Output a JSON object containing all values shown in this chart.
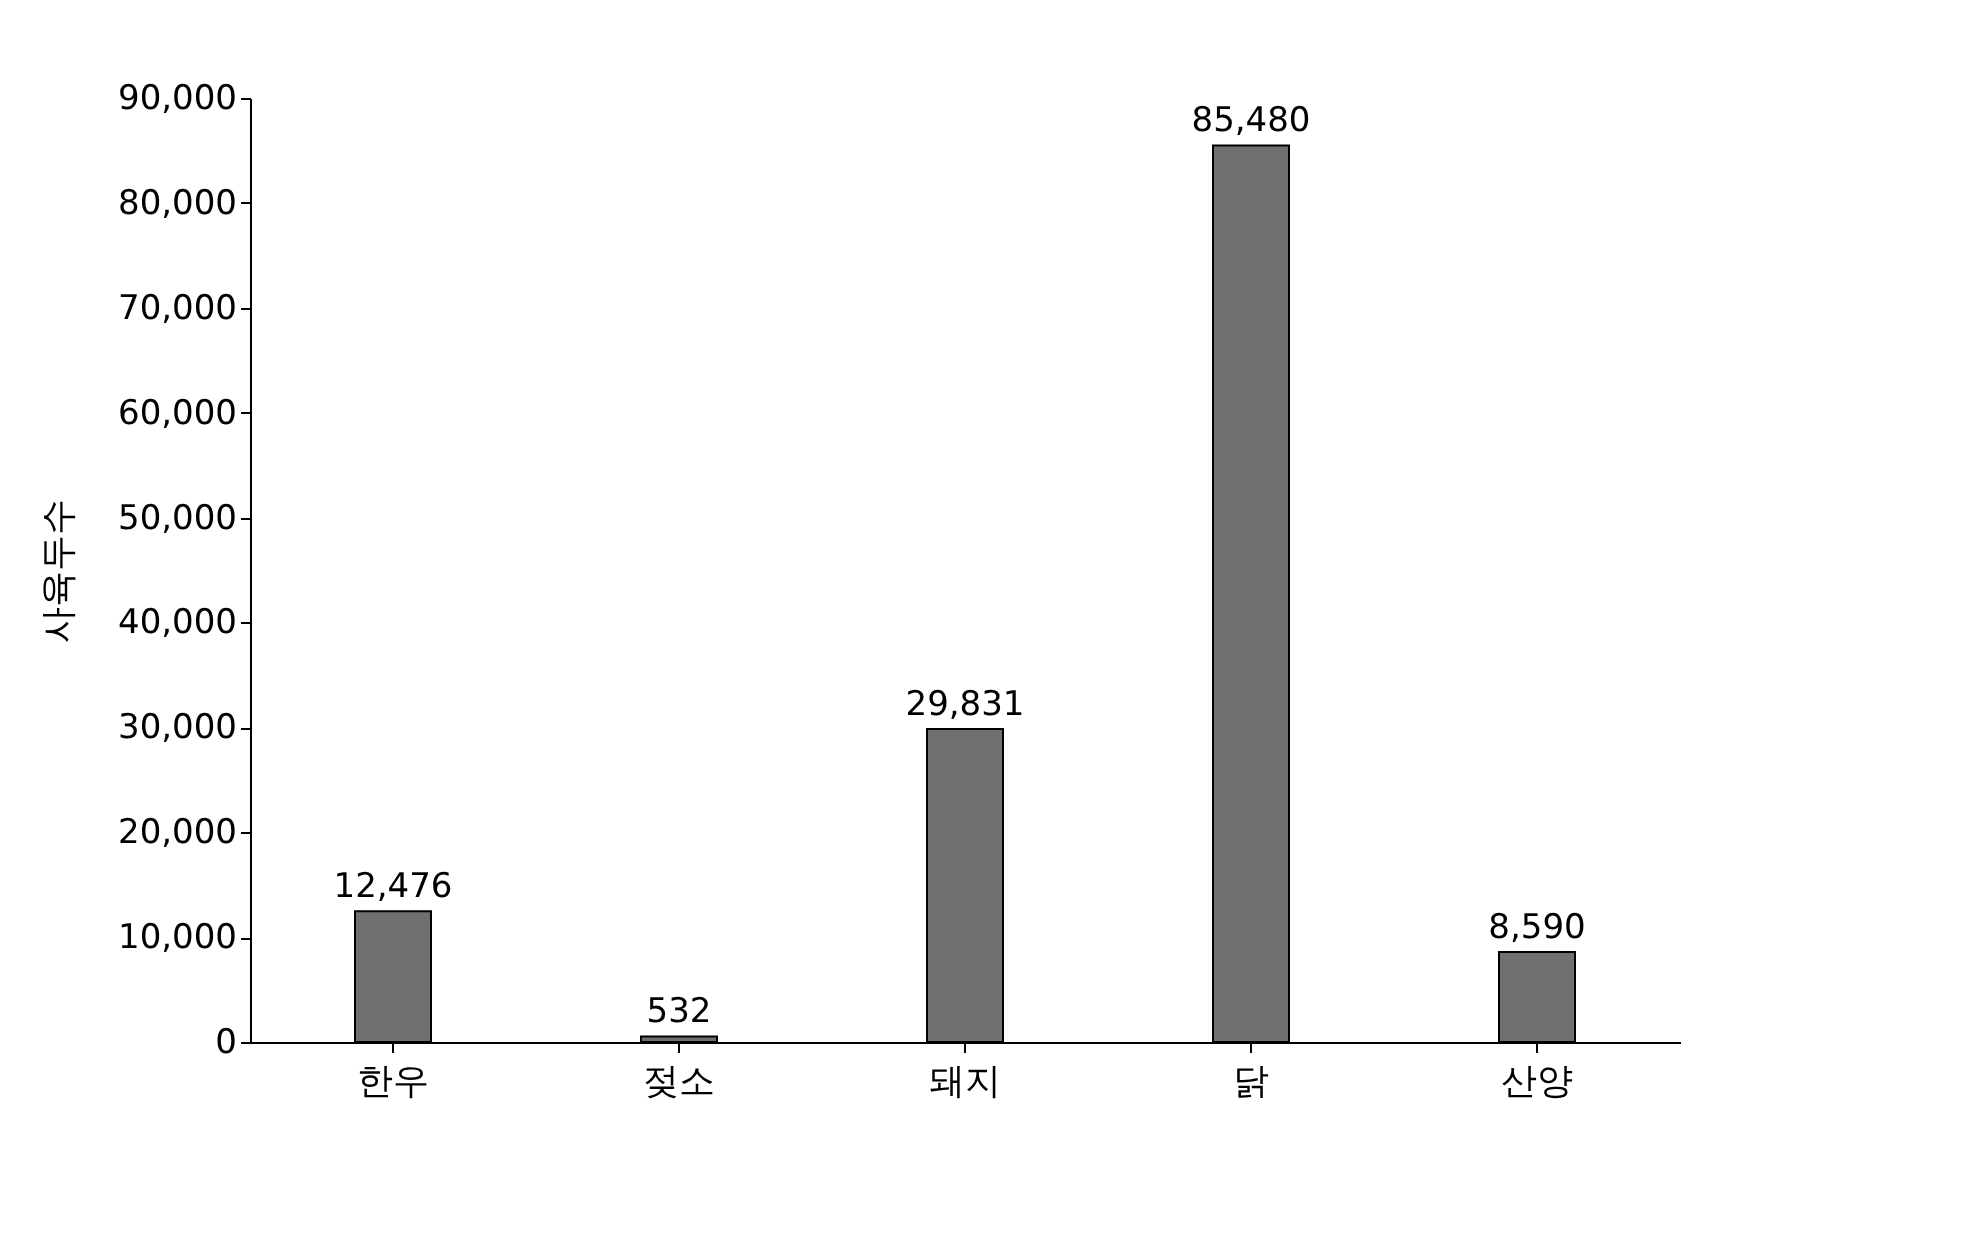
{
  "chart_data": {
    "type": "bar",
    "ylabel": "사육두수",
    "categories": [
      "한우",
      "젖소",
      "돼지",
      "닭",
      "산양"
    ],
    "values": [
      12476,
      532,
      29831,
      85480,
      8590
    ],
    "value_labels": [
      "12,476",
      "532",
      "29,831",
      "85,480",
      "8,590"
    ],
    "color": "#707070",
    "ylim": [
      0,
      90000
    ],
    "yticks": [
      0,
      {
        "value": 10000,
        "label": "10,000"
      },
      {
        "value": 20000,
        "label": "20,000"
      },
      {
        "value": 30000,
        "label": "30,000"
      },
      {
        "value": 40000,
        "label": "40,000"
      },
      {
        "value": 50000,
        "label": "50,000"
      },
      {
        "value": 60000,
        "label": "60,000"
      },
      {
        "value": 70000,
        "label": "70,000"
      },
      {
        "value": 80000,
        "label": "80,000"
      },
      {
        "value": 90000,
        "label": "90,000"
      }
    ]
  }
}
